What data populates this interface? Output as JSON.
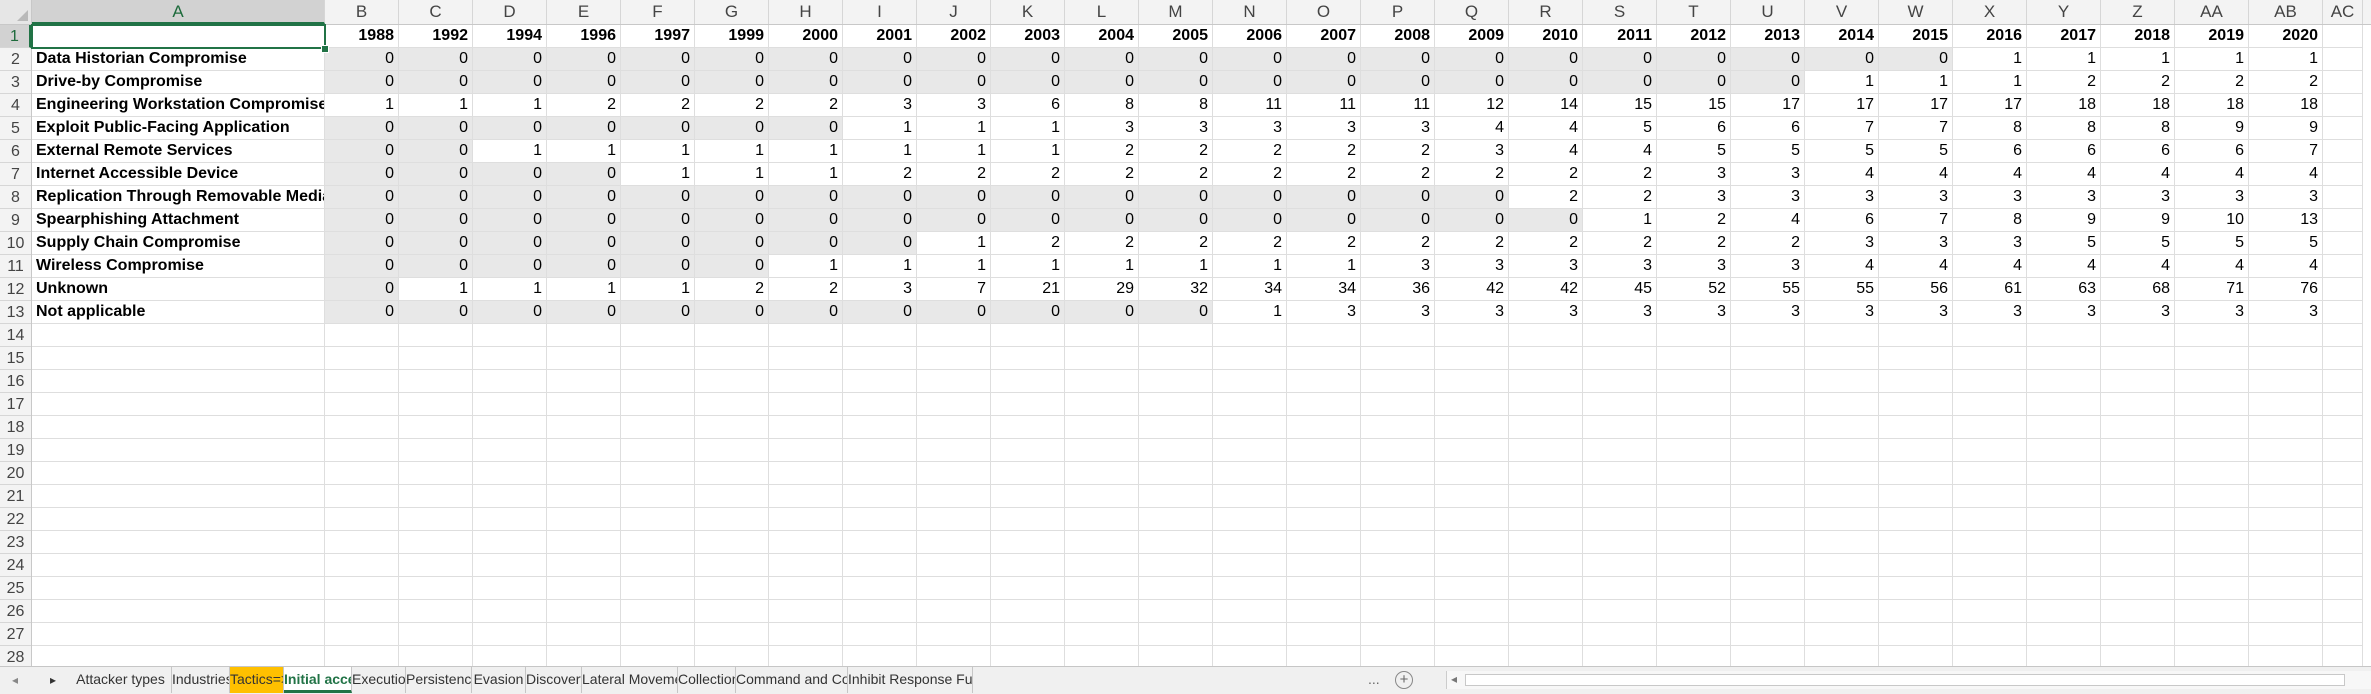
{
  "sheet": {
    "columns": [
      "A",
      "B",
      "C",
      "D",
      "E",
      "F",
      "G",
      "H",
      "I",
      "J",
      "K",
      "L",
      "M",
      "N",
      "O",
      "P",
      "Q",
      "R",
      "S",
      "T",
      "U",
      "V",
      "W",
      "X",
      "Y",
      "Z",
      "AA",
      "AB",
      "AC"
    ],
    "header_row": [
      "",
      "1988",
      "1992",
      "1994",
      "1996",
      "1997",
      "1999",
      "2000",
      "2001",
      "2002",
      "2003",
      "2004",
      "2005",
      "2006",
      "2007",
      "2008",
      "2009",
      "2010",
      "2011",
      "2012",
      "2013",
      "2014",
      "2015",
      "2016",
      "2017",
      "2018",
      "2019",
      "2020"
    ],
    "rows": [
      {
        "label": "Data Historian Compromise",
        "values": [
          0,
          0,
          0,
          0,
          0,
          0,
          0,
          0,
          0,
          0,
          0,
          0,
          0,
          0,
          0,
          0,
          0,
          0,
          0,
          0,
          0,
          0,
          1,
          1,
          1,
          1,
          1
        ]
      },
      {
        "label": "Drive-by Compromise",
        "values": [
          0,
          0,
          0,
          0,
          0,
          0,
          0,
          0,
          0,
          0,
          0,
          0,
          0,
          0,
          0,
          0,
          0,
          0,
          0,
          0,
          1,
          1,
          1,
          2,
          2,
          2,
          2
        ]
      },
      {
        "label": "Engineering Workstation Compromise",
        "values": [
          1,
          1,
          1,
          2,
          2,
          2,
          2,
          3,
          3,
          6,
          8,
          8,
          11,
          11,
          11,
          12,
          14,
          15,
          15,
          17,
          17,
          17,
          17,
          18,
          18,
          18,
          18
        ]
      },
      {
        "label": "Exploit Public-Facing Application",
        "values": [
          0,
          0,
          0,
          0,
          0,
          0,
          0,
          1,
          1,
          1,
          3,
          3,
          3,
          3,
          3,
          4,
          4,
          5,
          6,
          6,
          7,
          7,
          8,
          8,
          8,
          9,
          9
        ]
      },
      {
        "label": "External Remote Services",
        "values": [
          0,
          0,
          1,
          1,
          1,
          1,
          1,
          1,
          1,
          1,
          2,
          2,
          2,
          2,
          2,
          3,
          4,
          4,
          5,
          5,
          5,
          5,
          6,
          6,
          6,
          6,
          7
        ]
      },
      {
        "label": "Internet Accessible Device",
        "values": [
          0,
          0,
          0,
          0,
          1,
          1,
          1,
          2,
          2,
          2,
          2,
          2,
          2,
          2,
          2,
          2,
          2,
          2,
          3,
          3,
          4,
          4,
          4,
          4,
          4,
          4,
          4
        ]
      },
      {
        "label": "Replication Through Removable Media",
        "values": [
          0,
          0,
          0,
          0,
          0,
          0,
          0,
          0,
          0,
          0,
          0,
          0,
          0,
          0,
          0,
          0,
          2,
          2,
          3,
          3,
          3,
          3,
          3,
          3,
          3,
          3,
          3
        ]
      },
      {
        "label": "Spearphishing Attachment",
        "values": [
          0,
          0,
          0,
          0,
          0,
          0,
          0,
          0,
          0,
          0,
          0,
          0,
          0,
          0,
          0,
          0,
          0,
          1,
          2,
          4,
          6,
          7,
          8,
          9,
          9,
          10,
          13
        ]
      },
      {
        "label": "Supply Chain Compromise",
        "values": [
          0,
          0,
          0,
          0,
          0,
          0,
          0,
          0,
          1,
          2,
          2,
          2,
          2,
          2,
          2,
          2,
          2,
          2,
          2,
          2,
          3,
          3,
          3,
          5,
          5,
          5,
          5
        ]
      },
      {
        "label": "Wireless Compromise",
        "values": [
          0,
          0,
          0,
          0,
          0,
          0,
          1,
          1,
          1,
          1,
          1,
          1,
          1,
          1,
          3,
          3,
          3,
          3,
          3,
          3,
          4,
          4,
          4,
          4,
          4,
          4,
          4
        ]
      },
      {
        "label": "Unknown",
        "values": [
          0,
          1,
          1,
          1,
          1,
          2,
          2,
          3,
          7,
          21,
          29,
          32,
          34,
          34,
          36,
          42,
          42,
          45,
          52,
          55,
          55,
          56,
          61,
          63,
          68,
          71,
          76
        ]
      },
      {
        "label": "Not applicable",
        "values": [
          0,
          0,
          0,
          0,
          0,
          0,
          0,
          0,
          0,
          0,
          0,
          0,
          1,
          3,
          3,
          3,
          3,
          3,
          3,
          3,
          3,
          3,
          3,
          3,
          3,
          3,
          3
        ]
      }
    ],
    "shaded": [
      [
        0,
        0,
        0,
        0,
        0,
        0,
        0,
        0,
        0,
        0,
        0,
        0,
        0,
        0,
        0,
        0,
        0,
        0,
        0,
        0,
        0,
        0,
        0,
        0,
        0,
        0,
        0
      ],
      [
        0,
        0,
        0,
        0,
        0,
        0,
        0,
        0,
        0,
        0,
        0,
        0,
        0,
        0,
        0,
        0,
        0,
        0,
        0,
        0,
        0,
        0,
        0,
        0,
        0,
        0,
        0
      ],
      [
        0,
        0,
        0,
        0,
        0,
        0,
        0,
        0,
        0,
        0,
        0,
        0,
        0,
        0,
        0,
        0,
        0,
        0,
        0,
        0,
        0,
        0,
        0,
        0,
        0,
        0,
        0
      ],
      [
        0,
        0,
        0,
        0,
        0,
        0,
        0,
        0,
        0,
        0,
        0,
        0,
        0,
        0,
        0,
        0,
        0,
        0,
        0,
        0,
        0,
        0,
        0,
        0,
        0,
        0,
        0
      ],
      [
        0,
        0,
        0,
        0,
        0,
        0,
        0,
        0,
        0,
        0,
        0,
        0,
        0,
        0,
        0,
        0,
        0,
        0,
        0,
        0,
        0,
        0,
        0,
        0,
        0,
        0,
        0
      ],
      [
        0,
        0,
        0,
        0,
        0,
        0,
        0,
        0,
        0,
        0,
        0,
        0,
        0,
        0,
        0,
        0,
        0,
        0,
        0,
        0,
        0,
        0,
        0,
        0,
        0,
        0,
        0
      ],
      [
        0,
        0,
        0,
        0,
        0,
        0,
        0,
        0,
        0,
        0,
        0,
        0,
        0,
        0,
        0,
        0,
        0,
        0,
        0,
        0,
        0,
        0,
        0,
        0,
        0,
        0,
        0
      ],
      [
        0,
        0,
        0,
        0,
        0,
        0,
        0,
        0,
        0,
        0,
        0,
        0,
        0,
        0,
        0,
        0,
        0,
        0,
        0,
        0,
        0,
        0,
        0,
        0,
        0,
        0,
        0
      ],
      [
        0,
        0,
        0,
        0,
        0,
        0,
        0,
        0,
        0,
        0,
        0,
        0,
        0,
        0,
        0,
        0,
        0,
        0,
        0,
        0,
        0,
        0,
        0,
        0,
        0,
        0,
        0
      ],
      [
        0,
        0,
        0,
        0,
        0,
        0,
        0,
        0,
        0,
        0,
        0,
        0,
        0,
        0,
        0,
        0,
        0,
        0,
        0,
        0,
        0,
        0,
        0,
        0,
        0,
        0,
        0
      ],
      [
        0,
        0,
        0,
        0,
        0,
        0,
        0,
        0,
        0,
        0,
        0,
        0,
        0,
        0,
        0,
        0,
        0,
        0,
        0,
        0,
        0,
        0,
        0,
        0,
        0,
        0,
        0
      ],
      [
        0,
        0,
        0,
        0,
        0,
        0,
        0,
        0,
        0,
        0,
        0,
        0,
        0,
        0,
        0,
        0,
        0,
        0,
        0,
        0,
        0,
        0,
        0,
        0,
        0,
        0,
        0
      ]
    ],
    "total_rows": 28,
    "active_cell": "A1"
  },
  "tabs": [
    {
      "label": "Attacker types",
      "style": "normal"
    },
    {
      "label": "Industries",
      "style": "normal"
    },
    {
      "label": "Tactics=>",
      "style": "yellow"
    },
    {
      "label": "Initial access",
      "style": "active"
    },
    {
      "label": "Execution",
      "style": "normal"
    },
    {
      "label": "Persistence",
      "style": "normal"
    },
    {
      "label": "Evasion",
      "style": "normal"
    },
    {
      "label": "Discovery",
      "style": "normal"
    },
    {
      "label": "Lateral Movement",
      "style": "normal"
    },
    {
      "label": "Collection",
      "style": "normal"
    },
    {
      "label": "Command and Control",
      "style": "normal"
    },
    {
      "label": "Inhibit Response Functio",
      "style": "normal"
    }
  ],
  "tab_overflow": "...",
  "add_sheet": "+",
  "colors": {
    "accent": "#217346",
    "shade": "#e8e8e8",
    "tab_yellow": "#ffc000"
  }
}
